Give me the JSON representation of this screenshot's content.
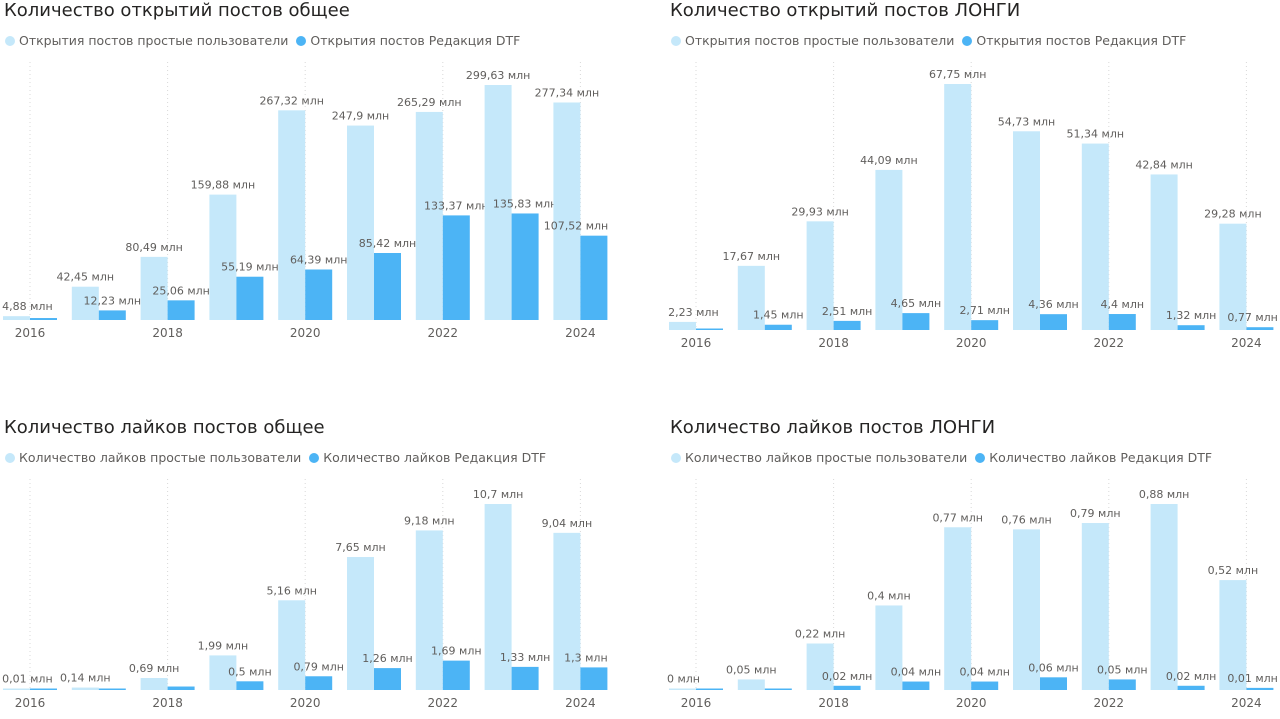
{
  "colors": {
    "light": "#c5e8fa",
    "dark": "#4cb4f5",
    "gridline": "#d8d8d8",
    "label": "#605e5c"
  },
  "chart_data": [
    {
      "type": "bar",
      "title": "Количество открытий постов общее",
      "categories": [
        "2016",
        "2017",
        "2018",
        "2019",
        "2020",
        "2021",
        "2022",
        "2023",
        "2024"
      ],
      "tick_labels": [
        "2016",
        "2018",
        "2020",
        "2022",
        "2024"
      ],
      "series": [
        {
          "name": "Открытия постов простые пользователи",
          "values": [
            4.88,
            42.45,
            80.49,
            159.88,
            267.32,
            247.9,
            265.29,
            299.63,
            277.34
          ],
          "labels": [
            "4,88 млн",
            "42,45 млн",
            "80,49 млн",
            "159,88 млн",
            "267,32 млн",
            "247,9 млн",
            "265,29 млн",
            "299,63 млн",
            "277,34 млн"
          ]
        },
        {
          "name": "Открытия постов Редакция DTF",
          "values": [
            2.5,
            12.23,
            25.06,
            55.19,
            64.39,
            85.42,
            133.37,
            135.83,
            107.52
          ],
          "labels": [
            "",
            "12,23 млн",
            "25,06 млн",
            "55,19 млн",
            "64,39 млн",
            "85,42 млн",
            "133,37 млн",
            "135,83 млн",
            "107,52 млн"
          ]
        }
      ]
    },
    {
      "type": "bar",
      "title": "Количество открытий постов ЛОНГИ",
      "categories": [
        "2016",
        "2017",
        "2018",
        "2019",
        "2020",
        "2021",
        "2022",
        "2023",
        "2024"
      ],
      "tick_labels": [
        "2016",
        "2018",
        "2020",
        "2022",
        "2024"
      ],
      "series": [
        {
          "name": "Открытия постов простые пользователи",
          "values": [
            2.23,
            17.67,
            29.93,
            44.09,
            67.75,
            54.73,
            51.34,
            42.84,
            29.28
          ],
          "labels": [
            "2,23 млн",
            "17,67 млн",
            "29,93 млн",
            "44,09 млн",
            "67,75 млн",
            "54,73 млн",
            "51,34 млн",
            "42,84 млн",
            "29,28 млн"
          ]
        },
        {
          "name": "Открытия постов Редакция DTF",
          "values": [
            0.2,
            1.45,
            2.51,
            4.65,
            2.71,
            4.36,
            4.4,
            1.32,
            0.77
          ],
          "labels": [
            "",
            "1,45 млн",
            "2,51 млн",
            "4,65 млн",
            "2,71 млн",
            "4,36 млн",
            "4,4 млн",
            "1,32 млн",
            "0,77 млн"
          ]
        }
      ]
    },
    {
      "type": "bar",
      "title": "Количество лайков постов общее",
      "categories": [
        "2016",
        "2017",
        "2018",
        "2019",
        "2020",
        "2021",
        "2022",
        "2023",
        "2024"
      ],
      "tick_labels": [
        "2016",
        "2018",
        "2020",
        "2022",
        "2024"
      ],
      "series": [
        {
          "name": "Количество лайков простые пользователи",
          "values": [
            0.01,
            0.14,
            0.69,
            1.99,
            5.16,
            7.65,
            9.18,
            10.7,
            9.04
          ],
          "labels": [
            "0,01 млн",
            "0,14 млн",
            "0,69 млн",
            "1,99 млн",
            "5,16 млн",
            "7,65 млн",
            "9,18 млн",
            "10,7 млн",
            "9,04 млн"
          ]
        },
        {
          "name": "Количество лайков Редакция DTF",
          "values": [
            0.01,
            0.05,
            0.2,
            0.5,
            0.79,
            1.26,
            1.69,
            1.33,
            1.3
          ],
          "labels": [
            "",
            "",
            "",
            "0,5 млн",
            "0,79 млн",
            "1,26 млн",
            "1,69 млн",
            "1,33 млн",
            "1,3 млн"
          ]
        }
      ]
    },
    {
      "type": "bar",
      "title": "Количество лайков постов ЛОНГИ",
      "categories": [
        "2016",
        "2017",
        "2018",
        "2019",
        "2020",
        "2021",
        "2022",
        "2023",
        "2024"
      ],
      "tick_labels": [
        "2016",
        "2018",
        "2020",
        "2022",
        "2024"
      ],
      "series": [
        {
          "name": "Количество лайков простые пользователи",
          "values": [
            0,
            0.05,
            0.22,
            0.4,
            0.77,
            0.76,
            0.79,
            0.88,
            0.52
          ],
          "labels": [
            "0 млн",
            "0,05 млн",
            "0,22 млн",
            "0,4 млн",
            "0,77 млн",
            "0,76 млн",
            "0,79 млн",
            "0,88 млн",
            "0,52 млн"
          ]
        },
        {
          "name": "Количество лайков Редакция DTF",
          "values": [
            0.003,
            0.005,
            0.02,
            0.04,
            0.04,
            0.06,
            0.05,
            0.02,
            0.01
          ],
          "labels": [
            "",
            "",
            "0,02 млн",
            "0,04 млн",
            "0,04 млн",
            "0,06 млн",
            "0,05 млн",
            "0,02 млн",
            "0,01 млн"
          ]
        }
      ]
    }
  ]
}
